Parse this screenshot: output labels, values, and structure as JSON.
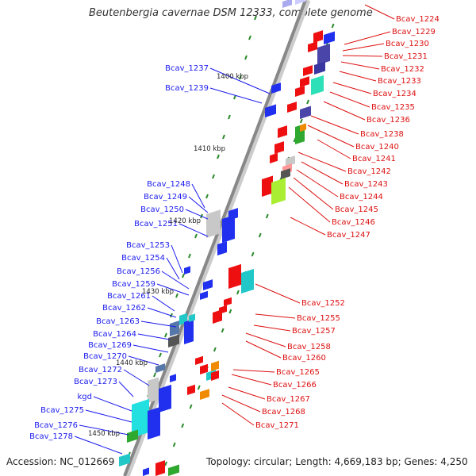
{
  "title": "Beutenbergia cavernae DSM 12333, complete genome",
  "footer": {
    "accession": "Accession: NC_012669",
    "summary": "Topology: circular; Length: 4,669,183 bp; Genes: 4,250"
  },
  "colors": {
    "forward": "#2030ee",
    "reverse": "#ee1010",
    "left_label": "#1a1aee",
    "right_label": "#dd1010",
    "backbone": "#888888",
    "tick": "#2a8a2a"
  },
  "kbp_marks": [
    "1400 kbp",
    "1410 kbp",
    "1420 kbp",
    "1430 kbp",
    "1440 kbp",
    "1450 kbp"
  ],
  "left_genes": [
    "Bcav_1237",
    "Bcav_1239",
    "Bcav_1248",
    "Bcav_1249",
    "Bcav_1250",
    "Bcav_1251",
    "Bcav_1253",
    "Bcav_1254",
    "Bcav_1256",
    "Bcav_1259",
    "Bcav_1261",
    "Bcav_1262",
    "Bcav_1263",
    "Bcav_1264",
    "Bcav_1269",
    "Bcav_1270",
    "Bcav_1272",
    "Bcav_1273",
    "kgd",
    "Bcav_1275",
    "Bcav_1276",
    "Bcav_1278"
  ],
  "right_genes": [
    "Bcav_1224",
    "Bcav_1229",
    "Bcav_1230",
    "Bcav_1231",
    "Bcav_1232",
    "Bcav_1233",
    "Bcav_1234",
    "Bcav_1235",
    "Bcav_1236",
    "Bcav_1238",
    "Bcav_1240",
    "Bcav_1241",
    "Bcav_1242",
    "Bcav_1243",
    "Bcav_1244",
    "Bcav_1245",
    "Bcav_1246",
    "Bcav_1247",
    "Bcav_1252",
    "Bcav_1255",
    "Bcav_1257",
    "Bcav_1258",
    "Bcav_1260",
    "Bcav_1265",
    "Bcav_1266",
    "Bcav_1267",
    "Bcav_1268",
    "Bcav_1271"
  ]
}
